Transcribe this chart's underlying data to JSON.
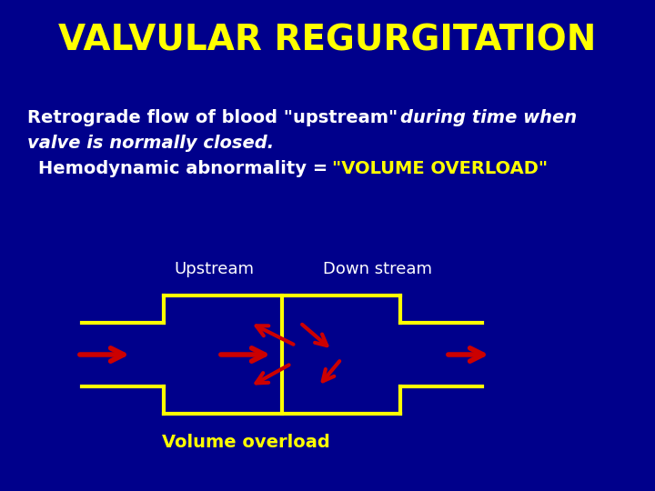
{
  "title": "VALVULAR REGURGITATION",
  "title_color": "#FFFF00",
  "title_fontsize": 28,
  "bg_color": "#00008B",
  "text_color_white": "#FFFFFF",
  "text_color_yellow": "#FFFF00",
  "body_fontsize": 14,
  "label_upstream": "Upstream",
  "label_downstream": "Down stream",
  "label_volume": "Volume overload",
  "arrow_color": "#CC0000",
  "valve_color": "#FFFF00"
}
